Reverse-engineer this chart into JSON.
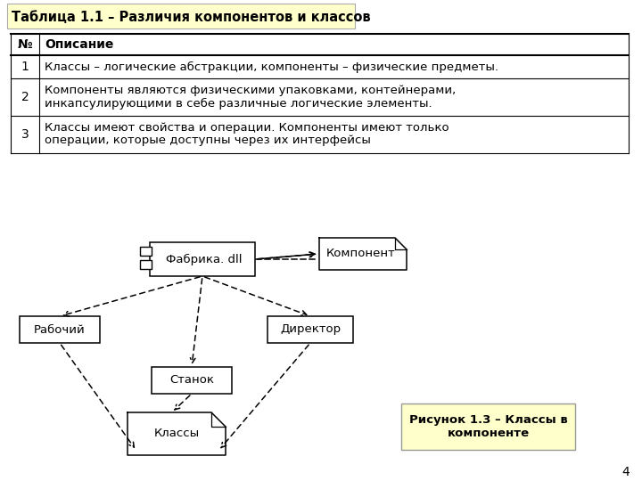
{
  "title": "Таблица 1.1 – Различия компонентов и классов",
  "title_bg": "#ffffcc",
  "table_headers": [
    "№",
    "Описание"
  ],
  "table_rows": [
    [
      "1",
      "Классы – логические абстракции, компоненты – физические предметы."
    ],
    [
      "2",
      "Компоненты являются физическими упаковками, контейнерами,\nинкапсулирующими в себе различные логические элементы."
    ],
    [
      "3",
      "Классы имеют свойства и операции. Компоненты имеют только\nоперации, которые доступны через их интерфейсы"
    ]
  ],
  "figure_caption": "Рисунок 1.3 – Классы в\nкомпоненте",
  "caption_bg": "#ffffcc",
  "page_number": "4",
  "bg_color": "#ffffff"
}
